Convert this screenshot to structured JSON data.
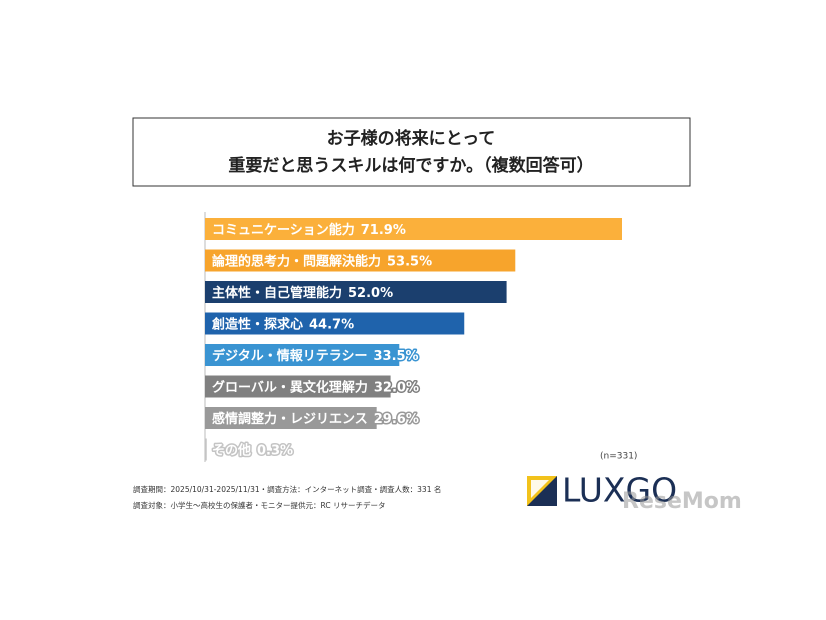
{
  "chart_data": {
    "type": "bar",
    "title": [
      "お子様の将来にとって",
      "重要だと思うスキルは何ですか。（複数回答可）"
    ],
    "categories": [
      "コミュニケーション能力",
      "論理的思考力・問題解決能力",
      "主体性・自己管理能力",
      "創造性・探求心",
      "デジタル・情報リテラシー",
      "グローバル・異文化理解力",
      "感情調整力・レジリエンス",
      "その他"
    ],
    "values": [
      71.9,
      53.5,
      52.0,
      44.7,
      33.5,
      32.0,
      29.6,
      0.3
    ],
    "value_labels": [
      "71.9%",
      "53.5%",
      "52.0%",
      "44.7%",
      "33.5%",
      "32.0%",
      "29.6%",
      "0.3%"
    ],
    "colors": [
      "#fbb03b",
      "#f7a42c",
      "#1b3f6e",
      "#1f63ac",
      "#3a94d2",
      "#808080",
      "#999999",
      "#c4c4c4"
    ],
    "sample_size": "(n=331)",
    "notes": [
      "調査期間：2025/10/31-2025/11/31・調査方法：インターネット調査・調査人数：331 名",
      "調査対象：小学生～高校生の保護者・モニター提供元：RC リサーチデータ"
    ],
    "logo": "LUXGO",
    "watermark": "ReseMom"
  }
}
